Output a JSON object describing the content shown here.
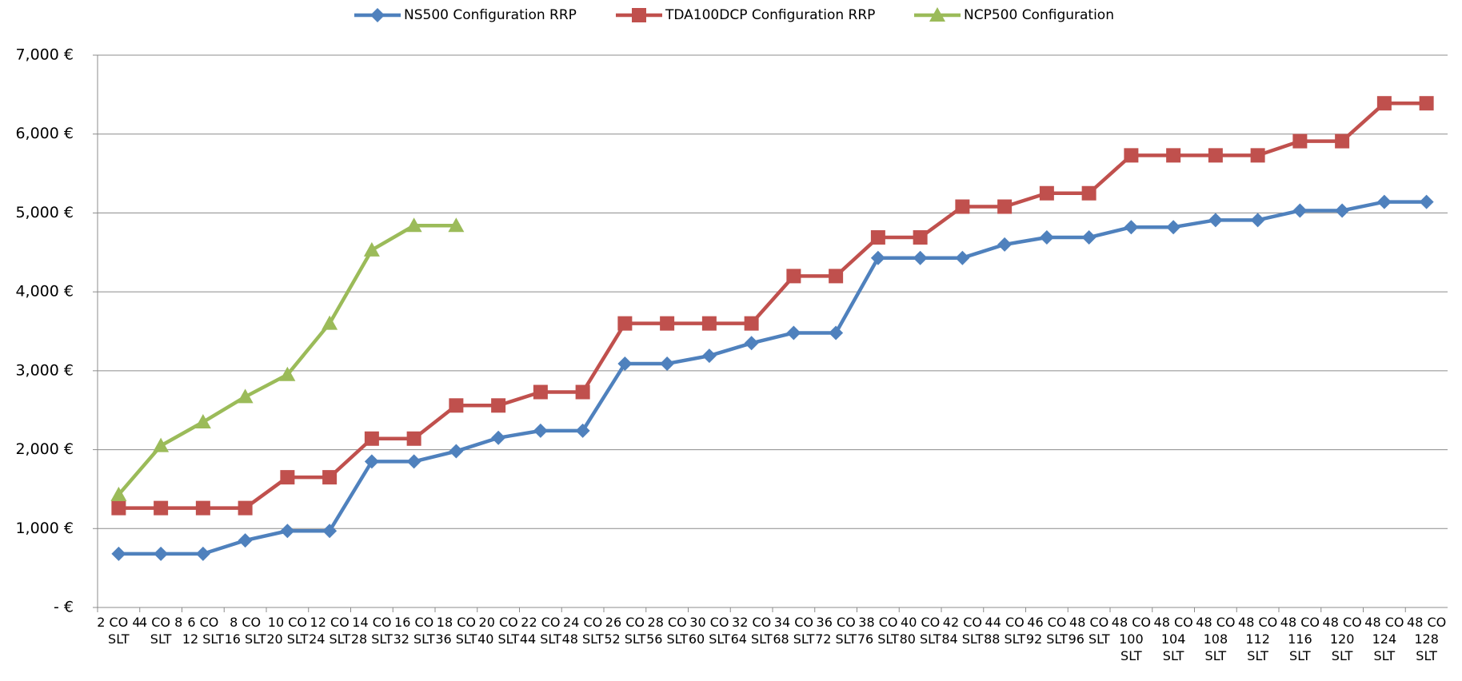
{
  "chart_data": {
    "type": "line",
    "categories": [
      "2 CO 4 SLT",
      "4 CO 8 SLT",
      "6 CO 12 SLT",
      "8 CO 16 SLT",
      "10 CO 20 SLT",
      "12 CO 24 SLT",
      "14 CO 28 SLT",
      "16 CO 32 SLT",
      "18 CO 36 SLT",
      "20 CO 40 SLT",
      "22 CO 44 SLT",
      "24 CO 48 SLT",
      "26 CO 52 SLT",
      "28 CO 56 SLT",
      "30 CO 60 SLT",
      "32 CO 64 SLT",
      "34 CO 68 SLT",
      "36 CO 72 SLT",
      "38 CO 76 SLT",
      "40 CO 80 SLT",
      "42 CO 84 SLT",
      "44 CO 88 SLT",
      "46 CO 92 SLT",
      "48 CO 96 SLT",
      "48 CO 100 SLT",
      "48 CO 104 SLT",
      "48 CO 108 SLT",
      "48 CO 112 SLT",
      "48 CO 116 SLT",
      "48 CO 120 SLT",
      "48 CO 124 SLT",
      "48 CO 128 SLT"
    ],
    "series": [
      {
        "name": "NS500 Configuration RRP",
        "color": "#4f81bd",
        "marker": "diamond",
        "values": [
          680,
          680,
          680,
          850,
          970,
          970,
          1850,
          1850,
          1980,
          2150,
          2240,
          2240,
          3090,
          3090,
          3190,
          3350,
          3480,
          3480,
          4430,
          4430,
          4430,
          4600,
          4690,
          4690,
          4820,
          4820,
          4910,
          4910,
          5030,
          5030,
          5140,
          5140
        ]
      },
      {
        "name": "TDA100DCP Configuration RRP",
        "color": "#c0504d",
        "marker": "square",
        "values": [
          1260,
          1260,
          1260,
          1260,
          1650,
          1650,
          2140,
          2140,
          2560,
          2560,
          2730,
          2730,
          3600,
          3600,
          3600,
          3600,
          4200,
          4200,
          4690,
          4690,
          5080,
          5080,
          5250,
          5250,
          5730,
          5730,
          5730,
          5730,
          5910,
          5910,
          6390,
          6390
        ]
      },
      {
        "name": "NCP500 Configuration",
        "color": "#9bbb59",
        "marker": "triangle",
        "values": [
          1430,
          2050,
          2350,
          2670,
          2950,
          3600,
          4530,
          4840,
          4840,
          null,
          null,
          null,
          null,
          null,
          null,
          null,
          null,
          null,
          null,
          null,
          null,
          null,
          null,
          null,
          null,
          null,
          null,
          null,
          null,
          null,
          null,
          null
        ]
      }
    ],
    "ylim": [
      0,
      7000
    ],
    "yticks": [
      {
        "value": 0,
        "label": "-  €"
      },
      {
        "value": 1000,
        "label": "1,000 €"
      },
      {
        "value": 2000,
        "label": "2,000 €"
      },
      {
        "value": 3000,
        "label": "3,000 €"
      },
      {
        "value": 4000,
        "label": "4,000 €"
      },
      {
        "value": 5000,
        "label": "5,000 €"
      },
      {
        "value": 6000,
        "label": "6,000 €"
      },
      {
        "value": 7000,
        "label": "7,000 €"
      }
    ],
    "grid": true,
    "legend": "top"
  }
}
